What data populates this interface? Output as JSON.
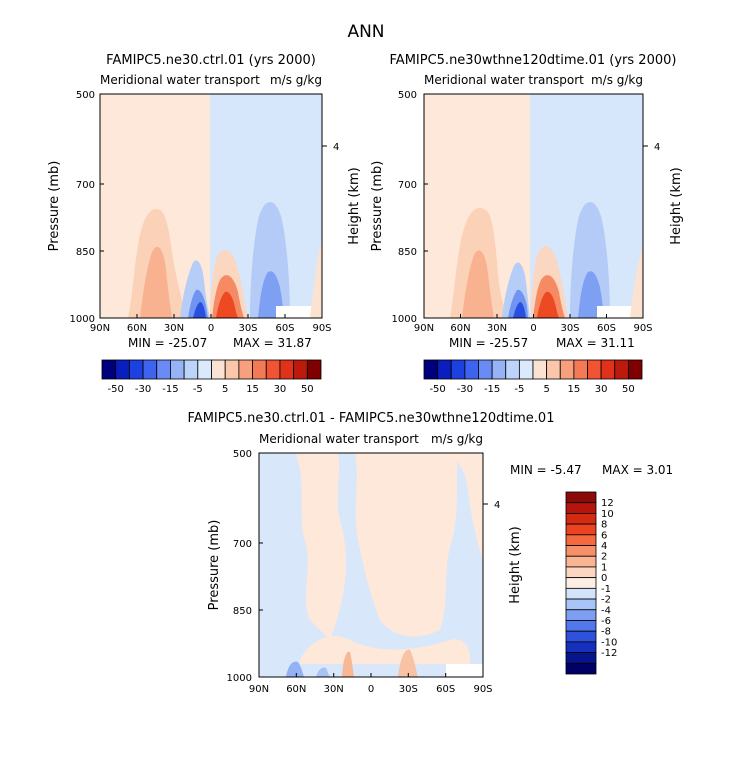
{
  "figure": {
    "title": "ANN"
  },
  "panels": [
    {
      "title": "FAMIPC5.ne30.ctrl.01 (yrs 2000)",
      "subtitle_left": "Meridional water transport",
      "subtitle_right": "m/s g/kg",
      "ylabel": "Pressure (mb)",
      "y2label": "Height (km)",
      "y2tick": "4",
      "min_label": "MIN = -25.07",
      "max_label": "MAX = 31.87"
    },
    {
      "title": "FAMIPC5.ne30wthne120dtime.01 (yrs 2000)",
      "subtitle_left": "Meridional water transport",
      "subtitle_right": "m/s g/kg",
      "ylabel": "Pressure (mb)",
      "y2label": "Height (km)",
      "y2tick": "4",
      "min_label": "MIN = -25.57",
      "max_label": "MAX = 31.11"
    },
    {
      "title": "FAMIPC5.ne30.ctrl.01 - FAMIPC5.ne30wthne120dtime.01",
      "subtitle_left": "Meridional water transport",
      "subtitle_right": "m/s g/kg",
      "ylabel": "Pressure (mb)",
      "y2label": "Height (km)",
      "y2tick": "4",
      "min_label": "MIN = -5.47",
      "max_label": "MAX = 3.01"
    }
  ],
  "chart_data": [
    {
      "type": "heatmap",
      "title": "FAMIPC5.ne30.ctrl.01 (yrs 2000)",
      "xlabel": "",
      "ylabel": "Pressure (mb)",
      "x_ticks": [
        "90N",
        "60N",
        "30N",
        "0",
        "30S",
        "60S",
        "90S"
      ],
      "y_ticks": [
        "500",
        "700",
        "850",
        "1000"
      ],
      "y_tick_values": [
        500,
        700,
        850,
        1000
      ],
      "ylim": [
        1000,
        500
      ],
      "min": -25.07,
      "max": 31.87,
      "colorbar_levels": [
        "-50",
        "-30",
        "-15",
        "-5",
        "5",
        "15",
        "30",
        "50"
      ],
      "colorbar_colors": [
        "#00007f",
        "#0a1dbd",
        "#1d40e0",
        "#3e63ee",
        "#6a8bf5",
        "#97b3f8",
        "#bcd3fa",
        "#dbe9fc",
        "#fbe3d3",
        "#fbc6a9",
        "#f8a07e",
        "#f47a55",
        "#f05432",
        "#e0321a",
        "#bb1a0c",
        "#7f0000"
      ]
    },
    {
      "type": "heatmap",
      "title": "FAMIPC5.ne30wthne120dtime.01 (yrs 2000)",
      "xlabel": "",
      "ylabel": "Pressure (mb)",
      "x_ticks": [
        "90N",
        "60N",
        "30N",
        "0",
        "30S",
        "60S",
        "90S"
      ],
      "y_ticks": [
        "500",
        "700",
        "850",
        "1000"
      ],
      "y_tick_values": [
        500,
        700,
        850,
        1000
      ],
      "ylim": [
        1000,
        500
      ],
      "min": -25.57,
      "max": 31.11,
      "colorbar_levels": [
        "-50",
        "-30",
        "-15",
        "-5",
        "5",
        "15",
        "30",
        "50"
      ],
      "colorbar_colors": [
        "#00007f",
        "#0a1dbd",
        "#1d40e0",
        "#3e63ee",
        "#6a8bf5",
        "#97b3f8",
        "#bcd3fa",
        "#dbe9fc",
        "#fbe3d3",
        "#fbc6a9",
        "#f8a07e",
        "#f47a55",
        "#f05432",
        "#e0321a",
        "#bb1a0c",
        "#7f0000"
      ]
    },
    {
      "type": "heatmap",
      "title": "FAMIPC5.ne30.ctrl.01 - FAMIPC5.ne30wthne120dtime.01",
      "xlabel": "",
      "ylabel": "Pressure (mb)",
      "x_ticks": [
        "90N",
        "60N",
        "30N",
        "0",
        "30S",
        "60S",
        "90S"
      ],
      "y_ticks": [
        "500",
        "700",
        "850",
        "1000"
      ],
      "y_tick_values": [
        500,
        700,
        850,
        1000
      ],
      "ylim": [
        1000,
        500
      ],
      "min": -5.47,
      "max": 3.01,
      "colorbar_levels": [
        "12",
        "10",
        "8",
        "6",
        "4",
        "2",
        "1",
        "0",
        "-1",
        "-2",
        "-4",
        "-6",
        "-8",
        "-10",
        "-12"
      ],
      "colorbar_colors": [
        "#8b0a0a",
        "#b5150c",
        "#d52a12",
        "#ec4420",
        "#f46a3e",
        "#f69068",
        "#f9b494",
        "#fbd6c0",
        "#fdeee4",
        "#d2e3fa",
        "#a9c4f6",
        "#7e9ff1",
        "#5378ec",
        "#2f52dd",
        "#1530bc",
        "#06158e",
        "#000066"
      ]
    }
  ]
}
